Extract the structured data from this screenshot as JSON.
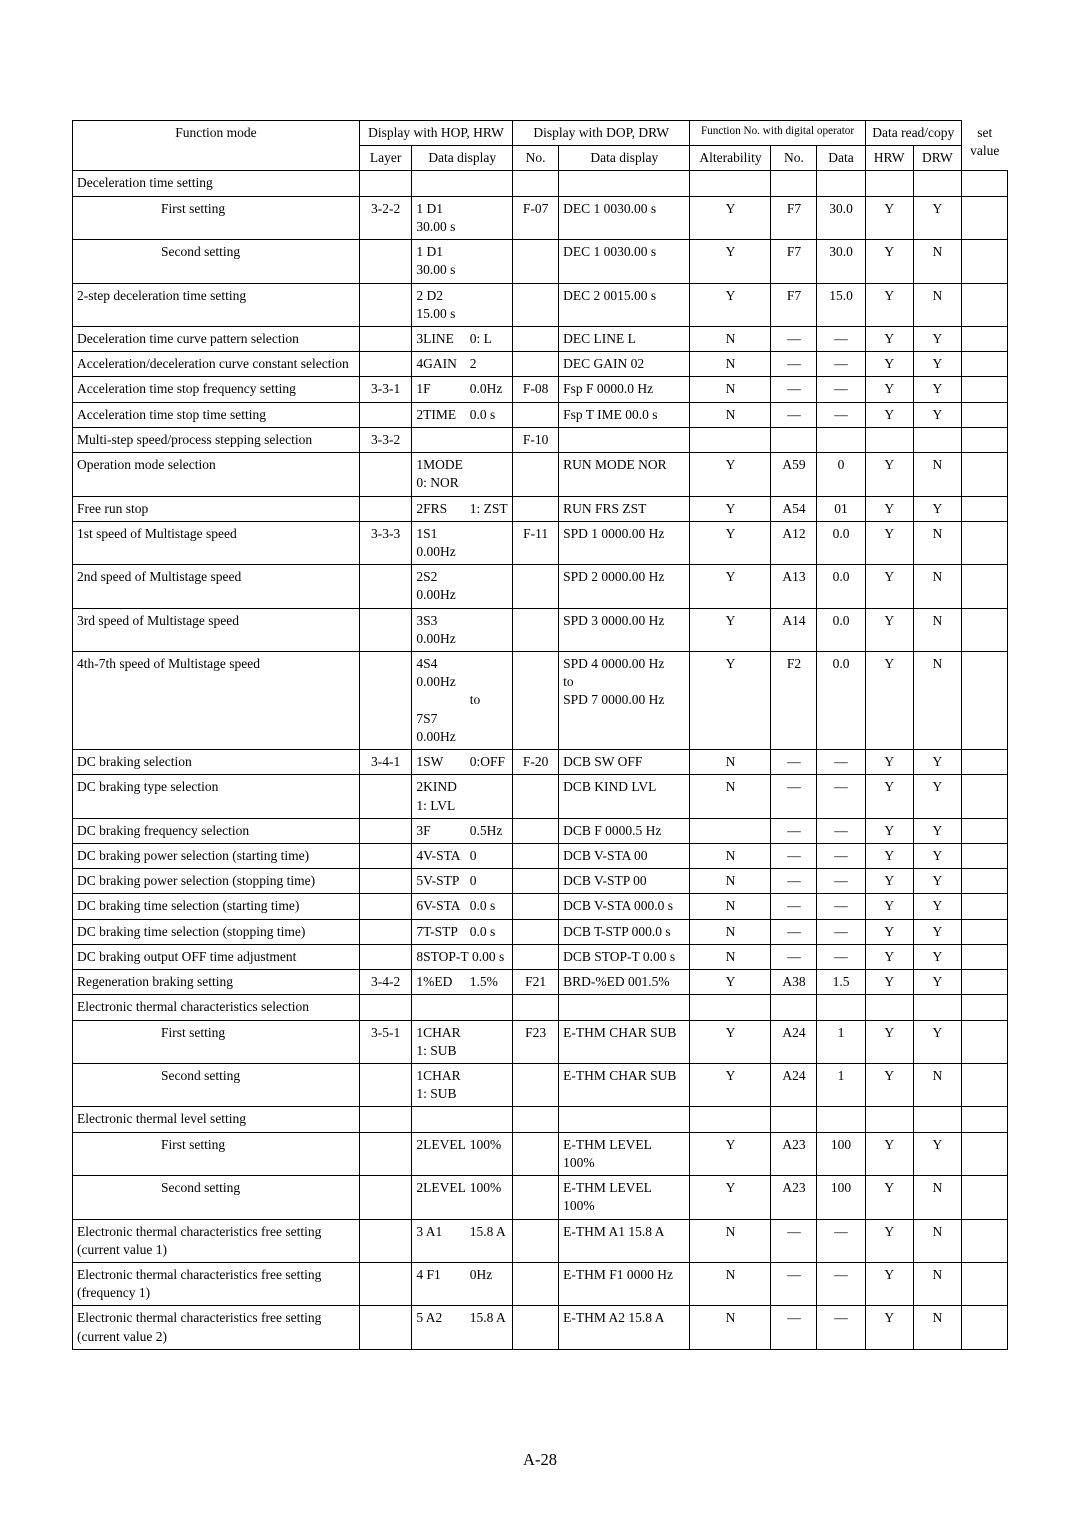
{
  "page_number": "A-28",
  "headers": {
    "function_mode": "Function mode",
    "hop_hrw": "Display with HOP, HRW",
    "dop_drw": "Display with DOP, DRW",
    "func_no_digital": "Function No. with digital operator",
    "data_rc": "Data read/copy",
    "set_value": "set value",
    "layer": "Layer",
    "data_display1": "Data display",
    "no": "No.",
    "data_display2": "Data display",
    "alterability": "Alterability",
    "no2": "No.",
    "data": "Data",
    "hrw": "HRW",
    "drw": "DRW"
  },
  "rows": [
    {
      "fn": "Deceleration time setting",
      "indent": false
    },
    {
      "fn": "First setting",
      "indent": true,
      "layer": "3-2-2",
      "dd1a": "1 D1",
      "dd1b": "30.00 s",
      "no": "F-07",
      "dd2": "DEC 1 0030.00 s",
      "alt": "Y",
      "fno": "F7",
      "fdata": "30.0",
      "hrw": "Y",
      "drw": "Y"
    },
    {
      "fn": "Second setting",
      "indent": true,
      "dd1a": "1 D1",
      "dd1b": "30.00 s",
      "dd2": "DEC 1 0030.00 s",
      "alt": "Y",
      "fno": "F7",
      "fdata": "30.0",
      "hrw": "Y",
      "drw": "N"
    },
    {
      "fn": "2-step deceleration time setting",
      "dd1a": "2 D2",
      "dd1b": "15.00 s",
      "dd2": "DEC 2 0015.00 s",
      "alt": "Y",
      "fno": "F7",
      "fdata": "15.0",
      "hrw": "Y",
      "drw": "N"
    },
    {
      "fn": "Deceleration time curve pattern selection",
      "dd1a": "3LINE",
      "dd1b": "0: L",
      "dd2": "DEC LINE L",
      "alt": "N",
      "fno": "—",
      "fdata": "—",
      "hrw": "Y",
      "drw": "Y"
    },
    {
      "fn": "Acceleration/deceleration curve constant selection",
      "dd1a": "4GAIN",
      "dd1b": "2",
      "dd2": "DEC GAIN 02",
      "alt": "N",
      "fno": "—",
      "fdata": "—",
      "hrw": "Y",
      "drw": "Y"
    },
    {
      "fn": "Acceleration time stop frequency setting",
      "layer": "3-3-1",
      "dd1a": "1F",
      "dd1b": "0.0Hz",
      "no": "F-08",
      "dd2": "Fsp F 0000.0 Hz",
      "alt": "N",
      "fno": "—",
      "fdata": "—",
      "hrw": "Y",
      "drw": "Y"
    },
    {
      "fn": "Acceleration time stop time setting",
      "dd1a": "2TIME",
      "dd1b": "0.0 s",
      "dd2": "Fsp T IME 00.0 s",
      "alt": "N",
      "fno": "—",
      "fdata": "—",
      "hrw": "Y",
      "drw": "Y"
    },
    {
      "fn": "Multi-step speed/process stepping selection",
      "layer": "3-3-2",
      "no": "F-10"
    },
    {
      "fn": "Operation mode selection",
      "dd1a": "1MODE",
      "dd1b": "0: NOR",
      "dd2": "RUN MODE NOR",
      "alt": "Y",
      "fno": "A59",
      "fdata": "0",
      "hrw": "Y",
      "drw": "N"
    },
    {
      "fn": "Free run stop",
      "dd1a": "2FRS",
      "dd1b": "1: ZST",
      "dd2": "RUN FRS ZST",
      "alt": "Y",
      "fno": "A54",
      "fdata": "01",
      "hrw": "Y",
      "drw": "Y"
    },
    {
      "fn": "1st speed of Multistage speed",
      "layer": "3-3-3",
      "dd1a": "1S1",
      "dd1b": "0.00Hz",
      "no": "F-11",
      "dd2": "SPD 1 0000.00 Hz",
      "alt": "Y",
      "fno": "A12",
      "fdata": "0.0",
      "hrw": "Y",
      "drw": "N"
    },
    {
      "fn": "2nd speed of Multistage speed",
      "dd1a": "2S2",
      "dd1b": "0.00Hz",
      "dd2": "SPD 2 0000.00 Hz",
      "alt": "Y",
      "fno": "A13",
      "fdata": "0.0",
      "hrw": "Y",
      "drw": "N"
    },
    {
      "fn": "3rd speed of Multistage speed",
      "dd1a": "3S3",
      "dd1b": "0.00Hz",
      "dd2": "SPD 3 0000.00 Hz",
      "alt": "Y",
      "fno": "A14",
      "fdata": "0.0",
      "hrw": "Y",
      "drw": "N"
    },
    {
      "fn": "4th-7th speed of Multistage speed",
      "dd1a": "4S4",
      "dd1b": "0.00Hz",
      "dd2": "SPD 4 0000.00 Hz",
      "alt": "Y",
      "fno": "F2",
      "fdata": "0.0",
      "hrw": "Y",
      "drw": "N",
      "extra": [
        {
          "dd1a": "",
          "dd1b": "to",
          "dd2": "to"
        },
        {
          "dd1a": "7S7",
          "dd1b": "0.00Hz",
          "dd2": "SPD 7 0000.00 Hz"
        }
      ]
    },
    {
      "fn": "DC braking selection",
      "layer": "3-4-1",
      "dd1a": "1SW",
      "dd1b": "0:OFF",
      "no": "F-20",
      "dd2": "DCB SW OFF",
      "alt": "N",
      "fno": "—",
      "fdata": "—",
      "hrw": "Y",
      "drw": "Y"
    },
    {
      "fn": "DC braking type selection",
      "dd1a": "2KIND",
      "dd1b": "1: LVL",
      "dd2": "DCB KIND LVL",
      "alt": "N",
      "fno": "—",
      "fdata": "—",
      "hrw": "Y",
      "drw": "Y"
    },
    {
      "fn": "DC braking frequency selection",
      "dd1a": "3F",
      "dd1b": "0.5Hz",
      "dd2": "DCB F 0000.5 Hz",
      "alt": "",
      "fno": "—",
      "fdata": "—",
      "hrw": "Y",
      "drw": "Y"
    },
    {
      "fn": "DC braking power selection (starting time)",
      "dd1a": "4V-STA",
      "dd1b": "0",
      "dd2": "DCB V-STA 00",
      "alt": "N",
      "fno": "—",
      "fdata": "—",
      "hrw": "Y",
      "drw": "Y"
    },
    {
      "fn": "DC braking power selection (stopping time)",
      "dd1a": "5V-STP",
      "dd1b": "0",
      "dd2": "DCB V-STP 00",
      "alt": "N",
      "fno": "—",
      "fdata": "—",
      "hrw": "Y",
      "drw": "Y"
    },
    {
      "fn": "DC braking time selection (starting time)",
      "dd1a": "6V-STA",
      "dd1b": "0.0 s",
      "dd2": "DCB V-STA 000.0 s",
      "alt": "N",
      "fno": "—",
      "fdata": "—",
      "hrw": "Y",
      "drw": "Y"
    },
    {
      "fn": "DC braking time selection (stopping time)",
      "dd1a": "7T-STP",
      "dd1b": "0.0 s",
      "dd2": "DCB T-STP 000.0 s",
      "alt": "N",
      "fno": "—",
      "fdata": "—",
      "hrw": "Y",
      "drw": "Y"
    },
    {
      "fn": "DC braking output OFF time adjustment",
      "dd1a": "8STOP-T",
      "dd1b": "0.00 s",
      "dd2": "DCB STOP-T 0.00 s",
      "alt": "N",
      "fno": "—",
      "fdata": "—",
      "hrw": "Y",
      "drw": "Y"
    },
    {
      "fn": "Regeneration braking setting",
      "layer": "3-4-2",
      "dd1a": "1%ED",
      "dd1b": "1.5%",
      "no": "F21",
      "dd2": "BRD-%ED 001.5%",
      "alt": "Y",
      "fno": "A38",
      "fdata": "1.5",
      "hrw": "Y",
      "drw": "Y"
    },
    {
      "fn": "Electronic thermal characteristics selection"
    },
    {
      "fn": "First setting",
      "indent": true,
      "layer": "3-5-1",
      "dd1a": "1CHAR",
      "dd1b": "1: SUB",
      "no": "F23",
      "dd2": "E-THM CHAR SUB",
      "alt": "Y",
      "fno": "A24",
      "fdata": "1",
      "hrw": "Y",
      "drw": "Y"
    },
    {
      "fn": "Second setting",
      "indent": true,
      "dd1a": "1CHAR",
      "dd1b": "1: SUB",
      "dd2": "E-THM CHAR SUB",
      "alt": "Y",
      "fno": "A24",
      "fdata": "1",
      "hrw": "Y",
      "drw": "N"
    },
    {
      "fn": "Electronic thermal level setting"
    },
    {
      "fn": "First setting",
      "indent": true,
      "dd1a": "2LEVEL",
      "dd1b": "100%",
      "dd2": "E-THM LEVEL 100%",
      "alt": "Y",
      "fno": "A23",
      "fdata": "100",
      "hrw": "Y",
      "drw": "Y"
    },
    {
      "fn": "Second setting",
      "indent": true,
      "dd1a": "2LEVEL",
      "dd1b": "100%",
      "dd2": "E-THM LEVEL 100%",
      "alt": "Y",
      "fno": "A23",
      "fdata": "100",
      "hrw": "Y",
      "drw": "N"
    },
    {
      "fn": "Electronic thermal characteristics free setting (current value 1)",
      "dd1a": "3 A1",
      "dd1b": "15.8 A",
      "dd2": "E-THM A1 15.8 A",
      "alt": "N",
      "fno": "—",
      "fdata": "—",
      "hrw": "Y",
      "drw": "N"
    },
    {
      "fn": "Electronic thermal characteristics free setting (frequency 1)",
      "dd1a": "4 F1",
      "dd1b": "0Hz",
      "dd2": "E-THM  F1 0000 Hz",
      "alt": "N",
      "fno": "—",
      "fdata": "—",
      "hrw": "Y",
      "drw": "N"
    },
    {
      "fn": "Electronic thermal characteristics free setting (current value 2)",
      "dd1a": "5 A2",
      "dd1b": "15.8 A",
      "dd2": "E-THM A2 15.8 A",
      "alt": "N",
      "fno": "—",
      "fdata": "—",
      "hrw": "Y",
      "drw": "N"
    }
  ]
}
